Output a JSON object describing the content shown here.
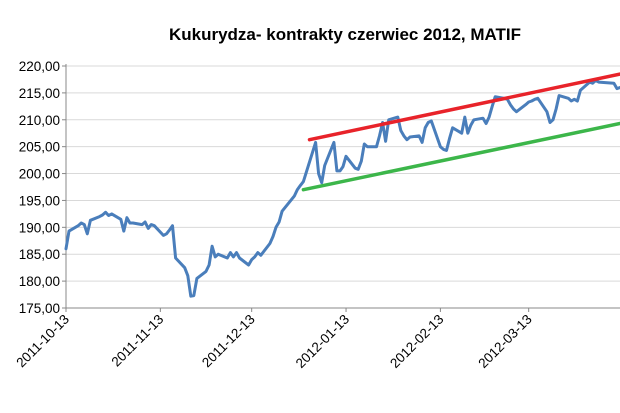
{
  "chart_data": {
    "type": "line",
    "title": "Kukurydza- kontrakty czerwiec 2012, MATIF",
    "xlabel": "",
    "ylabel": "",
    "ylim": [
      175,
      220
    ],
    "y_ticks": [
      "175,00",
      "180,00",
      "185,00",
      "190,00",
      "195,00",
      "200,00",
      "205,00",
      "210,00",
      "215,00",
      "220,00"
    ],
    "x_ticks": [
      "2011-10-13",
      "2011-11-13",
      "2011-12-13",
      "2012-01-13",
      "2012-02-13",
      "2012-03-13"
    ],
    "x_tick_dates": [
      "2011-10-13",
      "2011-11-13",
      "2011-12-13",
      "2012-01-13",
      "2012-02-13",
      "2012-03-13"
    ],
    "x_range": [
      "2011-10-13",
      "2012-04-12"
    ],
    "grid": "horizontal",
    "legend": "none",
    "colors": {
      "price": "#4a7ebb",
      "upper_trend": "#e8232a",
      "lower_trend": "#3cb64a",
      "grid": "#d9d9d9",
      "axis": "#888888"
    },
    "series": [
      {
        "key": "price",
        "x": [
          "2011-10-13",
          "2011-10-14",
          "2011-10-17",
          "2011-10-18",
          "2011-10-19",
          "2011-10-20",
          "2011-10-21",
          "2011-10-24",
          "2011-10-25",
          "2011-10-26",
          "2011-10-27",
          "2011-10-28",
          "2011-10-31",
          "2011-11-01",
          "2011-11-02",
          "2011-11-03",
          "2011-11-04",
          "2011-11-07",
          "2011-11-08",
          "2011-11-09",
          "2011-11-10",
          "2011-11-11",
          "2011-11-14",
          "2011-11-15",
          "2011-11-16",
          "2011-11-17",
          "2011-11-18",
          "2011-11-21",
          "2011-11-22",
          "2011-11-23",
          "2011-11-24",
          "2011-11-25",
          "2011-11-28",
          "2011-11-29",
          "2011-11-30",
          "2011-12-01",
          "2011-12-02",
          "2011-12-05",
          "2011-12-06",
          "2011-12-07",
          "2011-12-08",
          "2011-12-09",
          "2011-12-12",
          "2011-12-13",
          "2011-12-14",
          "2011-12-15",
          "2011-12-16",
          "2011-12-19",
          "2011-12-20",
          "2011-12-21",
          "2011-12-22",
          "2011-12-23",
          "2011-12-27",
          "2011-12-28",
          "2011-12-29",
          "2011-12-30",
          "2012-01-03",
          "2012-01-04",
          "2012-01-05",
          "2012-01-06",
          "2012-01-09",
          "2012-01-10",
          "2012-01-11",
          "2012-01-12",
          "2012-01-13",
          "2012-01-16",
          "2012-01-17",
          "2012-01-18",
          "2012-01-19",
          "2012-01-20",
          "2012-01-23",
          "2012-01-24",
          "2012-01-25",
          "2012-01-26",
          "2012-01-27",
          "2012-01-30",
          "2012-01-31",
          "2012-02-01",
          "2012-02-02",
          "2012-02-03",
          "2012-02-06",
          "2012-02-07",
          "2012-02-08",
          "2012-02-09",
          "2012-02-10",
          "2012-02-13",
          "2012-02-14",
          "2012-02-15",
          "2012-02-16",
          "2012-02-17",
          "2012-02-20",
          "2012-02-21",
          "2012-02-22",
          "2012-02-23",
          "2012-02-24",
          "2012-02-27",
          "2012-02-28",
          "2012-02-29",
          "2012-03-01",
          "2012-03-02",
          "2012-03-05",
          "2012-03-06",
          "2012-03-07",
          "2012-03-08",
          "2012-03-09",
          "2012-03-12",
          "2012-03-13",
          "2012-03-14",
          "2012-03-15",
          "2012-03-16",
          "2012-03-19",
          "2012-03-20",
          "2012-03-21",
          "2012-03-22",
          "2012-03-23",
          "2012-03-26",
          "2012-03-27",
          "2012-03-28",
          "2012-03-29",
          "2012-03-30",
          "2012-04-02",
          "2012-04-03",
          "2012-04-04",
          "2012-04-05",
          "2012-04-10",
          "2012-04-11",
          "2012-04-12"
        ],
        "values": [
          186.0,
          189.3,
          190.3,
          190.8,
          190.5,
          188.8,
          191.3,
          192.0,
          192.3,
          192.8,
          192.2,
          192.5,
          191.5,
          189.3,
          191.8,
          190.8,
          190.8,
          190.5,
          191.0,
          189.8,
          190.5,
          190.3,
          188.5,
          188.8,
          189.5,
          190.3,
          184.3,
          182.5,
          181.0,
          177.2,
          177.3,
          180.5,
          181.8,
          183.0,
          186.5,
          184.5,
          185.0,
          184.3,
          185.3,
          184.5,
          185.3,
          184.3,
          183.0,
          184.0,
          184.5,
          185.3,
          184.8,
          187.0,
          188.3,
          190.0,
          191.0,
          193.0,
          195.8,
          197.0,
          197.8,
          198.5,
          205.8,
          200.0,
          198.3,
          201.5,
          205.8,
          200.5,
          200.5,
          201.3,
          203.2,
          201.0,
          200.8,
          202.3,
          205.5,
          205.0,
          205.0,
          207.0,
          209.5,
          206.0,
          210.0,
          210.5,
          208.0,
          207.0,
          206.3,
          206.8,
          207.0,
          205.8,
          208.5,
          209.5,
          209.8,
          205.0,
          204.5,
          204.3,
          206.5,
          208.5,
          207.5,
          210.5,
          207.5,
          209.0,
          210.0,
          210.3,
          209.3,
          210.5,
          212.5,
          214.3,
          214.0,
          213.8,
          212.8,
          212.0,
          211.5,
          212.8,
          213.3,
          213.5,
          213.8,
          214.0,
          211.5,
          209.5,
          210.0,
          212.0,
          214.5,
          214.0,
          213.5,
          213.8,
          213.5,
          215.5,
          217.0,
          216.8,
          217.3,
          217.0,
          216.8,
          215.8,
          216.0
        ]
      },
      {
        "key": "upper_trend",
        "x": [
          "2012-01-01",
          "2012-04-12"
        ],
        "values": [
          206.3,
          218.5
        ]
      },
      {
        "key": "lower_trend",
        "x": [
          "2011-12-30",
          "2012-04-12"
        ],
        "values": [
          197.0,
          209.3
        ]
      }
    ]
  }
}
